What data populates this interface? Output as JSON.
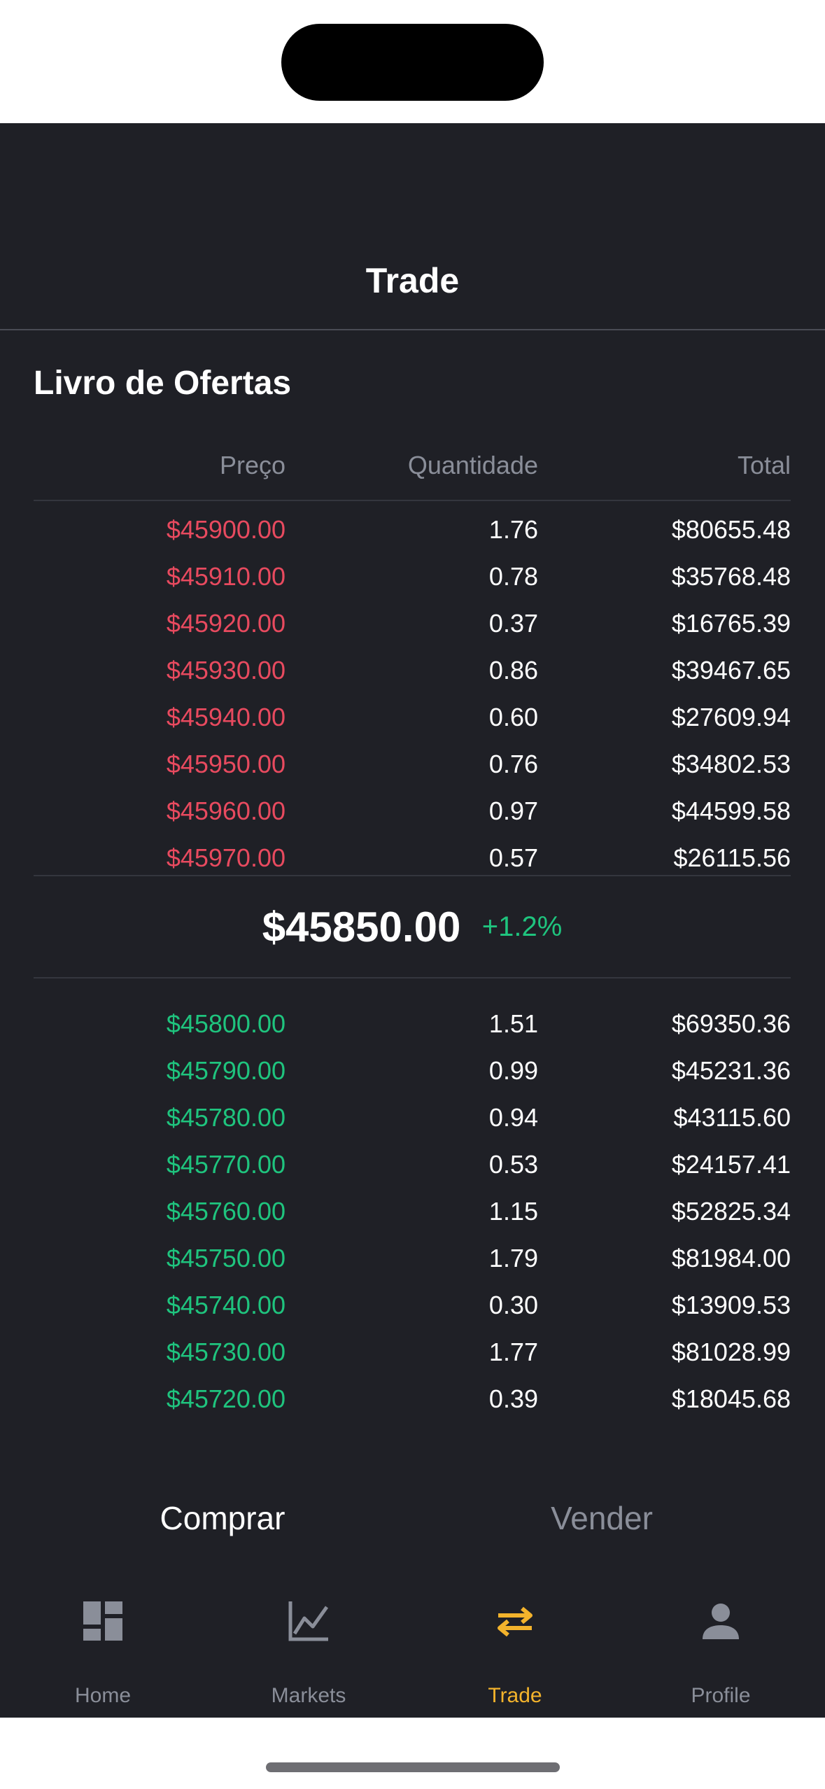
{
  "header": {
    "title": "Trade"
  },
  "order_book": {
    "title": "Livro de Ofertas",
    "columns": [
      "Preço",
      "Quantidade",
      "Total"
    ],
    "asks": [
      {
        "price": "$45900.00",
        "qty": "1.76",
        "total": "$80655.48"
      },
      {
        "price": "$45910.00",
        "qty": "0.78",
        "total": "$35768.48"
      },
      {
        "price": "$45920.00",
        "qty": "0.37",
        "total": "$16765.39"
      },
      {
        "price": "$45930.00",
        "qty": "0.86",
        "total": "$39467.65"
      },
      {
        "price": "$45940.00",
        "qty": "0.60",
        "total": "$27609.94"
      },
      {
        "price": "$45950.00",
        "qty": "0.76",
        "total": "$34802.53"
      },
      {
        "price": "$45960.00",
        "qty": "0.97",
        "total": "$44599.58"
      },
      {
        "price": "$45970.00",
        "qty": "0.57",
        "total": "$26115.56"
      }
    ],
    "last_price": "$45850.00",
    "change": "+1.2%",
    "bids": [
      {
        "price": "$45800.00",
        "qty": "1.51",
        "total": "$69350.36"
      },
      {
        "price": "$45790.00",
        "qty": "0.99",
        "total": "$45231.36"
      },
      {
        "price": "$45780.00",
        "qty": "0.94",
        "total": "$43115.60"
      },
      {
        "price": "$45770.00",
        "qty": "0.53",
        "total": "$24157.41"
      },
      {
        "price": "$45760.00",
        "qty": "1.15",
        "total": "$52825.34"
      },
      {
        "price": "$45750.00",
        "qty": "1.79",
        "total": "$81984.00"
      },
      {
        "price": "$45740.00",
        "qty": "0.30",
        "total": "$13909.53"
      },
      {
        "price": "$45730.00",
        "qty": "1.77",
        "total": "$81028.99"
      },
      {
        "price": "$45720.00",
        "qty": "0.39",
        "total": "$18045.68"
      }
    ]
  },
  "trade_tabs": {
    "buy": "Comprar",
    "sell": "Vender",
    "selected": "buy"
  },
  "tabbar": {
    "items": [
      {
        "label": "Home",
        "icon": "dashboard-icon"
      },
      {
        "label": "Markets",
        "icon": "chart-line-icon"
      },
      {
        "label": "Trade",
        "icon": "swap-arrows-icon"
      },
      {
        "label": "Profile",
        "icon": "person-icon"
      }
    ],
    "active": "Trade"
  },
  "colors": {
    "background": "#1f2026",
    "ask": "#e84a5f",
    "bid": "#1fc47e",
    "accent": "#f3b32c",
    "muted": "#8a8e99"
  }
}
